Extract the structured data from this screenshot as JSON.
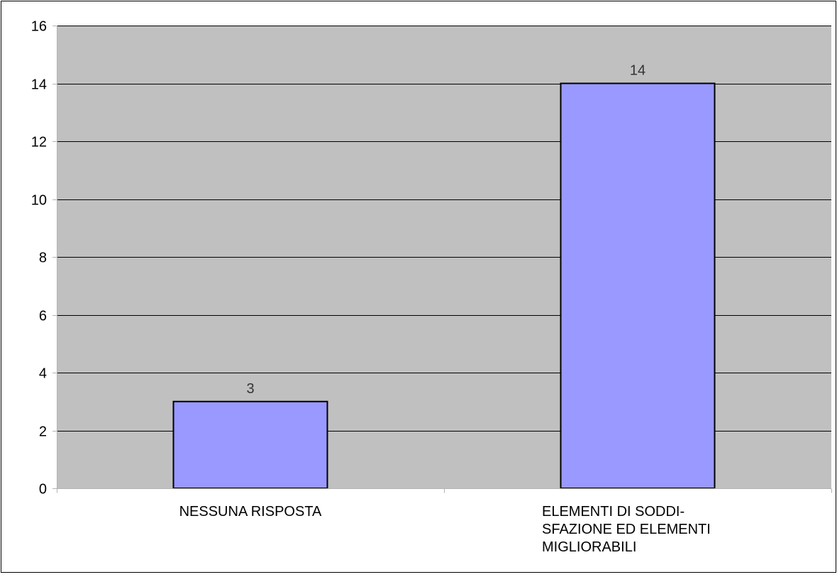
{
  "chart_data": {
    "type": "bar",
    "categories": [
      [
        "NESSUNA RISPOSTA"
      ],
      [
        "ELEMENTI DI SODDI-",
        "SFAZIONE ED ELEMENTI",
        "MIGLIORABILI"
      ]
    ],
    "values": [
      3,
      14
    ],
    "data_labels": [
      "3",
      "14"
    ],
    "ylim": [
      0,
      16
    ],
    "yticks": [
      0,
      2,
      4,
      6,
      8,
      10,
      12,
      14,
      16
    ],
    "grid": true,
    "legend": "none",
    "colors": {
      "plot_background": "#c0c0c0",
      "bar_fill": "#9999ff",
      "bar_stroke": "#000000",
      "gridline": "#000000",
      "axis": "#b3b3b3",
      "text": "#000000",
      "data_label": "#333333",
      "frame": "#000000"
    }
  }
}
